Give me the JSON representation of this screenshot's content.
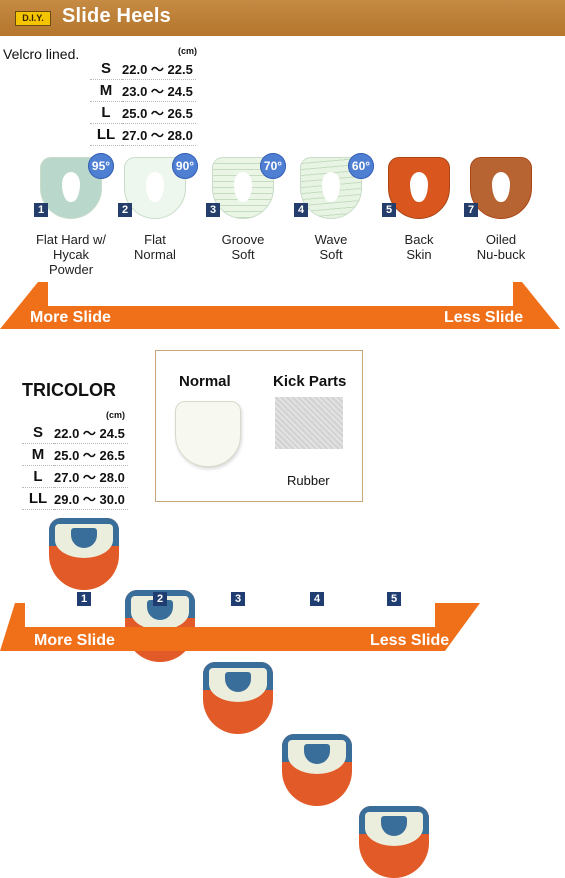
{
  "header": {
    "badge": "D.I.Y.",
    "title": "Slide Heels"
  },
  "top": {
    "note": "Velcro lined.",
    "unit": "(cm)",
    "sizes": [
      {
        "size": "S",
        "range": "22.0 ～ 22.5"
      },
      {
        "size": "M",
        "range": "23.0 ～ 24.5"
      },
      {
        "size": "L",
        "range": "25.0 ～ 26.5"
      },
      {
        "size": "LL",
        "range": "27.0 ～ 28.0"
      }
    ],
    "heels": [
      {
        "num": "1",
        "deg": "95°",
        "label": "Flat Hard w/\nHycak\nPowder",
        "color": "#b9d7cb"
      },
      {
        "num": "2",
        "deg": "90°",
        "label": "Flat\nNormal",
        "color": "#eef7ee"
      },
      {
        "num": "3",
        "deg": "70°",
        "label": "Groove\nSoft",
        "color": "#eaf5e5"
      },
      {
        "num": "4",
        "deg": "60°",
        "label": "Wave\nSoft",
        "color": "#e8f4e3"
      },
      {
        "num": "5",
        "deg": "",
        "label": "Back\nSkin",
        "color": "#d9561e"
      },
      {
        "num": "7",
        "deg": "",
        "label": "Oiled\nNu-buck",
        "color": "#b76432"
      }
    ],
    "arrow": {
      "left": "More Slide",
      "right": "Less Slide",
      "color": "#f0701a"
    }
  },
  "tricolor": {
    "title": "TRICOLOR",
    "unit": "(cm)",
    "sizes": [
      {
        "size": "S",
        "range": "22.0 ～ 24.5"
      },
      {
        "size": "M",
        "range": "25.0 ～ 26.5"
      },
      {
        "size": "L",
        "range": "27.0 ～ 28.0"
      },
      {
        "size": "LL",
        "range": "29.0 ～ 30.0"
      }
    ],
    "box": {
      "normal": "Normal",
      "kick": "Kick Parts",
      "rubber": "Rubber"
    },
    "heels": [
      "1",
      "2",
      "3",
      "4",
      "5"
    ],
    "arrow": {
      "left": "More Slide",
      "right": "Less Slide",
      "color": "#f0701a"
    }
  }
}
